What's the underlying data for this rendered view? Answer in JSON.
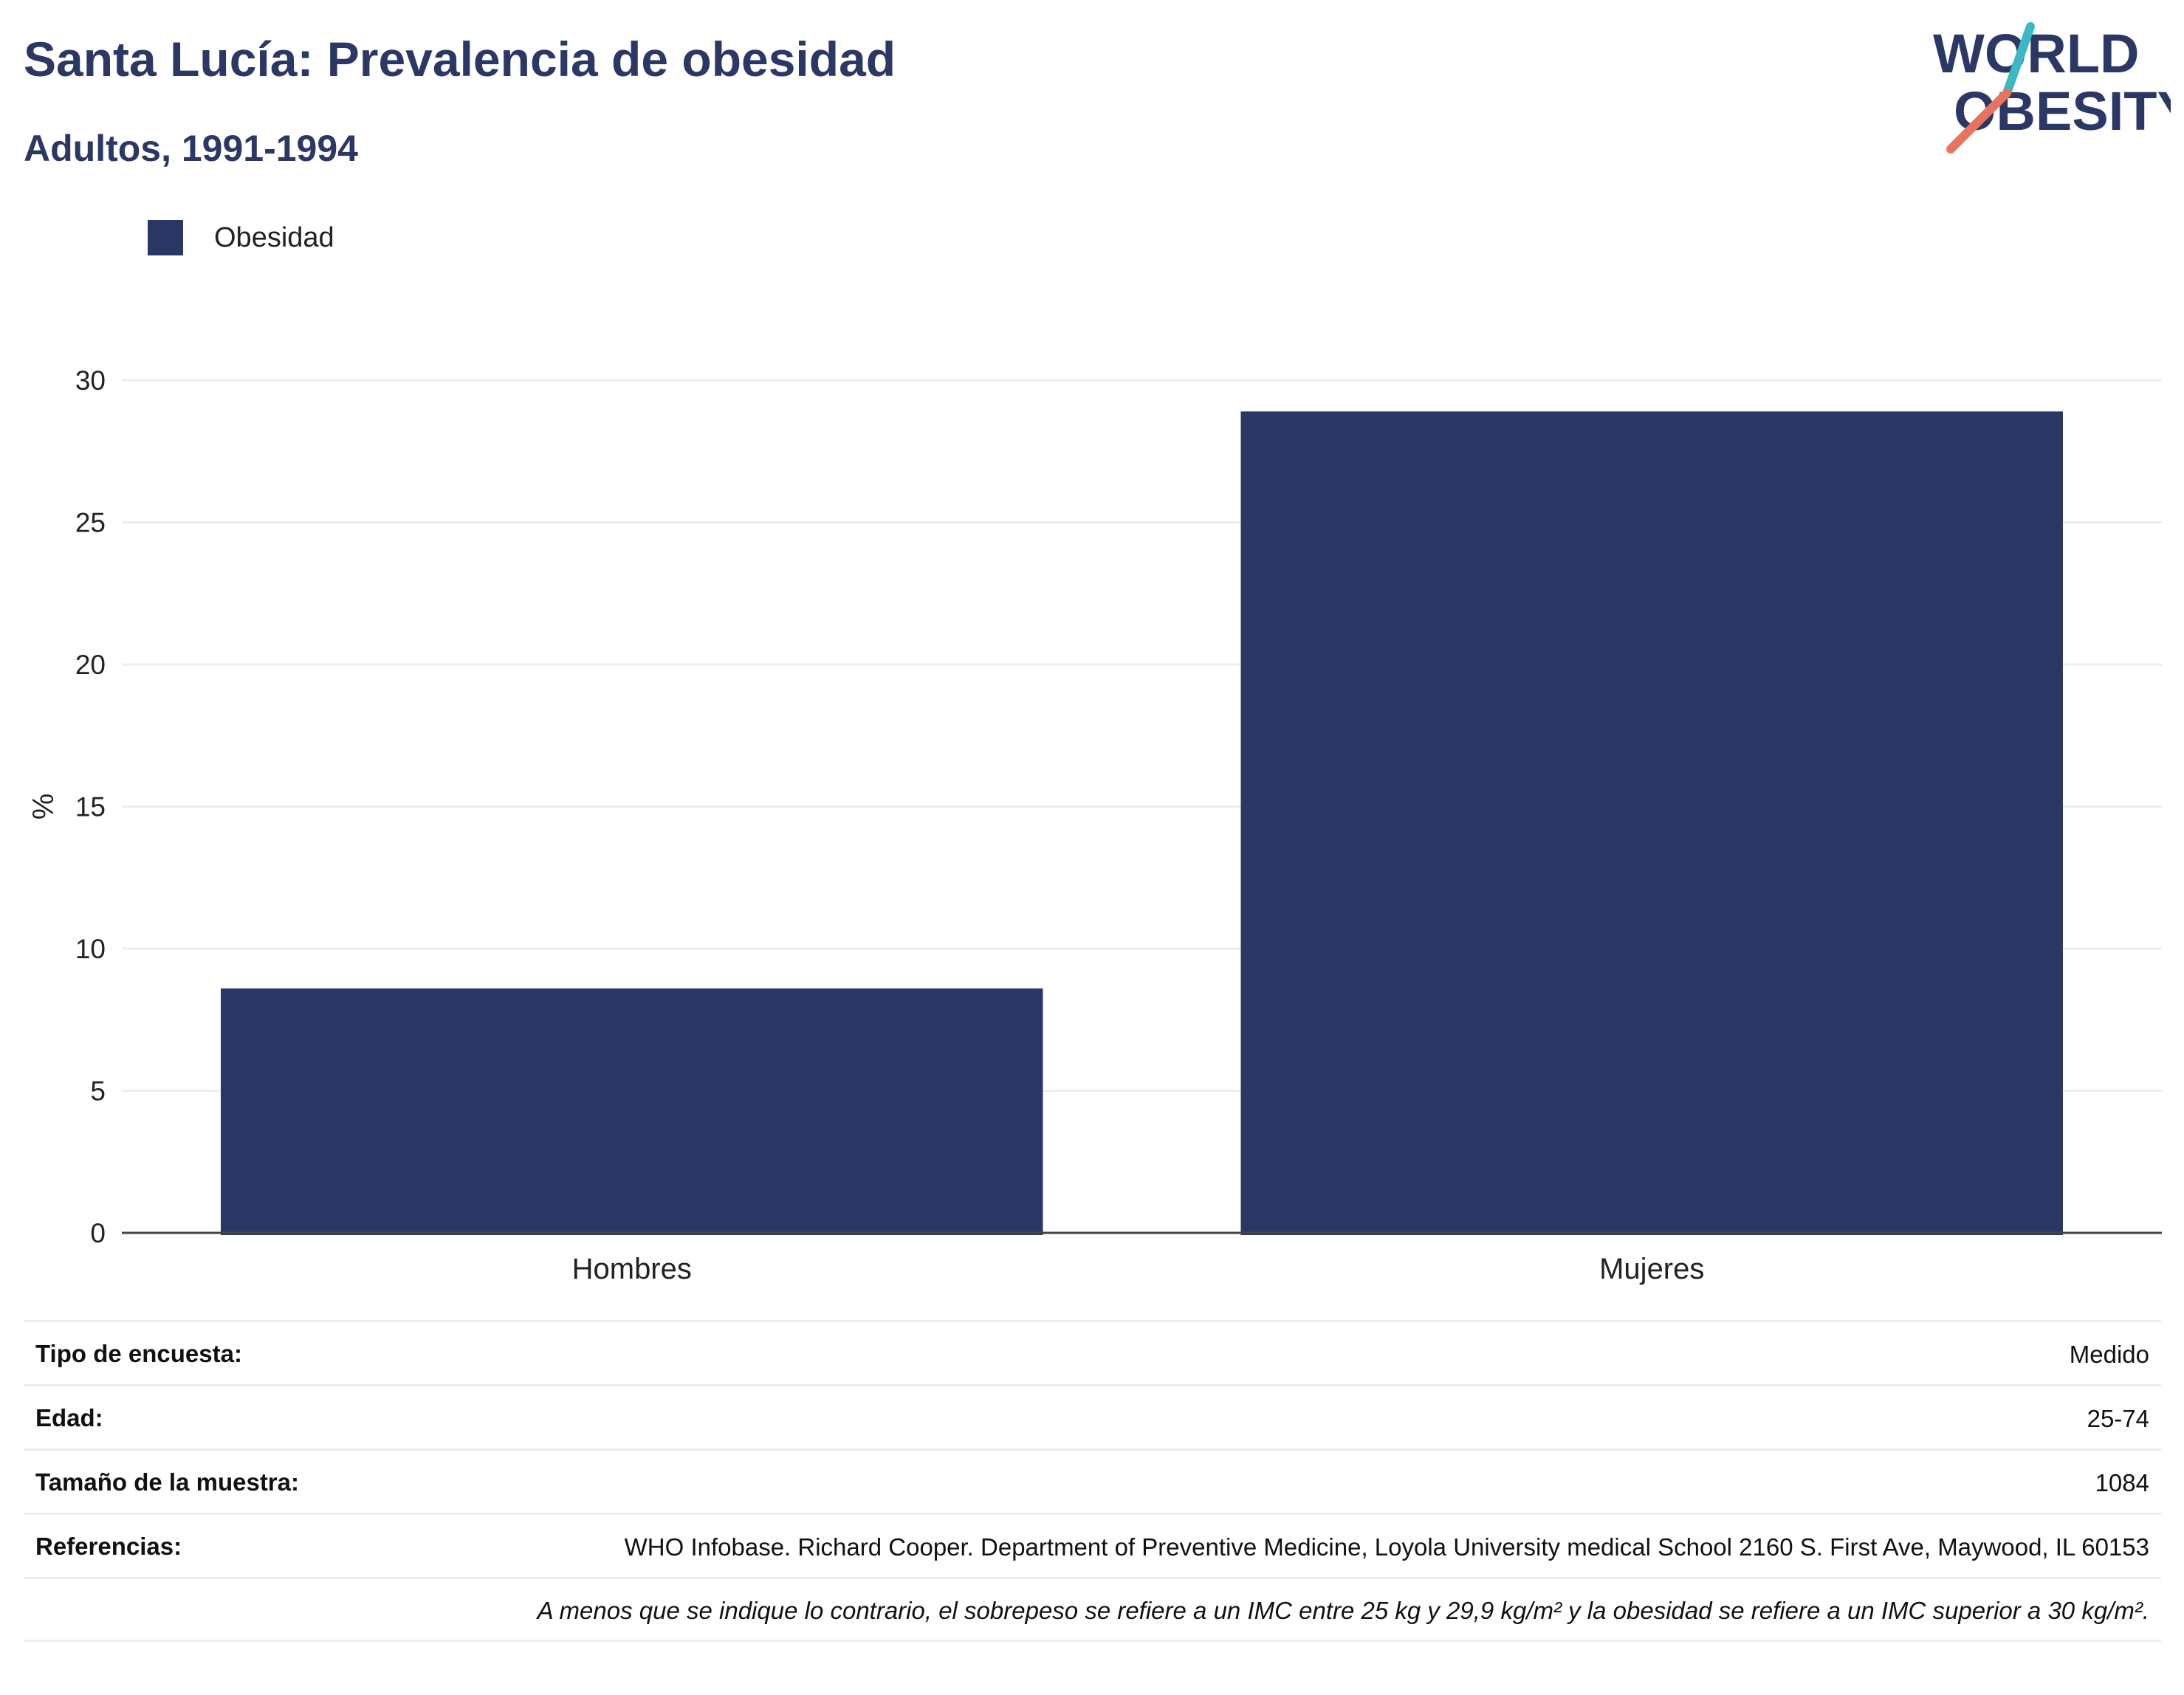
{
  "header": {
    "title": "Santa Lucía: Prevalencia de obesidad",
    "subtitle": "Adultos, 1991-1994"
  },
  "logo": {
    "line1": "WORLD",
    "line2": "OBESITY",
    "colors": {
      "navy": "#2b3764",
      "teal": "#3bb8c3",
      "coral": "#e8735f"
    }
  },
  "legend": {
    "label": "Obesidad"
  },
  "chart_data": {
    "type": "bar",
    "categories": [
      "Hombres",
      "Mujeres"
    ],
    "series": [
      {
        "name": "Obesidad",
        "values": [
          8.6,
          28.9
        ],
        "color": "#2a3764"
      }
    ],
    "ylabel": "%",
    "ylim": [
      0,
      30
    ],
    "yticks": [
      0,
      5,
      10,
      15,
      20,
      25,
      30
    ],
    "grid": true,
    "legend_position": "top-left"
  },
  "info": {
    "rows": [
      {
        "label": "Tipo de encuesta:",
        "value": "Medido"
      },
      {
        "label": "Edad:",
        "value": "25-74"
      },
      {
        "label": "Tamaño de la muestra:",
        "value": "1084"
      },
      {
        "label": "Referencias:",
        "value": "WHO Infobase. Richard Cooper. Department of Preventive Medicine, Loyola University medical School 2160 S. First Ave, Maywood, IL 60153"
      }
    ],
    "note": "A menos que se indique lo contrario, el sobrepeso se refiere a un IMC entre 25 kg y 29,9 kg/m² y la obesidad se refiere a un IMC superior a 30 kg/m²."
  }
}
